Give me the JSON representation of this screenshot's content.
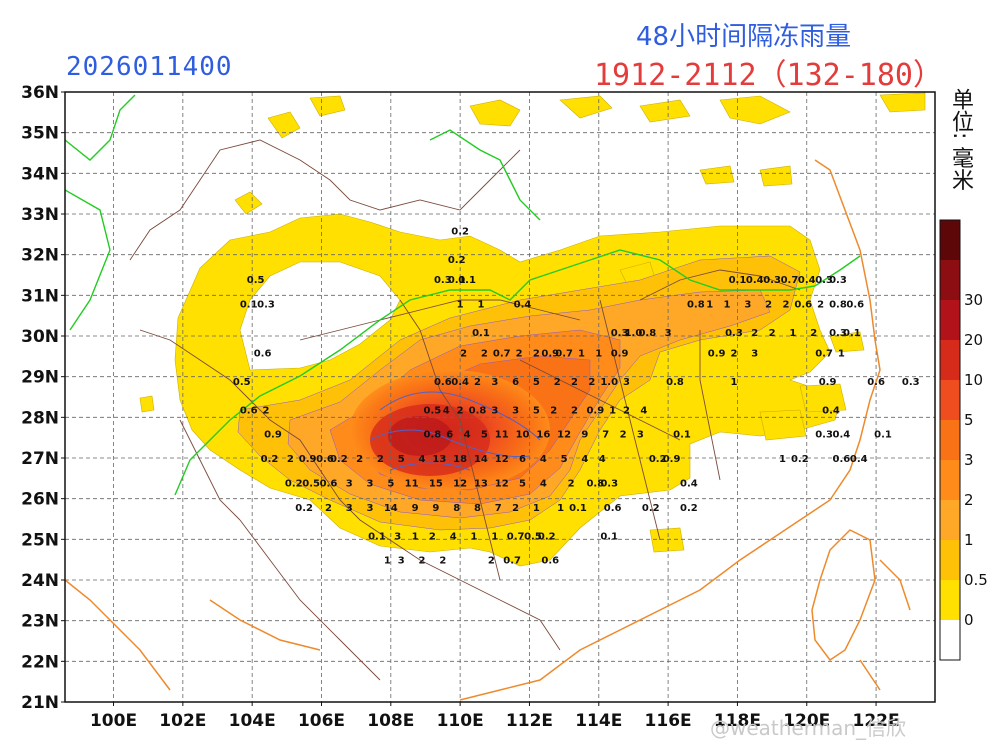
{
  "header": {
    "date_code": "2026011400",
    "title": "48小时间隔冻雨量",
    "subtitle": "1912-2112（132-180）",
    "unit": "单位: 毫米"
  },
  "watermark": "@weatherman_信欣",
  "axes": {
    "lat_labels": [
      "36N",
      "35N",
      "34N",
      "33N",
      "32N",
      "31N",
      "30N",
      "29N",
      "28N",
      "27N",
      "26N",
      "25N",
      "24N",
      "23N",
      "22N",
      "21N"
    ],
    "lon_labels": [
      "100E",
      "102E",
      "104E",
      "106E",
      "108E",
      "110E",
      "112E",
      "114E",
      "116E",
      "118E",
      "120E",
      "122E"
    ]
  },
  "legend": {
    "levels": [
      "0",
      "0.5",
      "1",
      "2",
      "3",
      "5",
      "10",
      "20",
      "30"
    ],
    "colors": [
      "#ffffff",
      "#ffe000",
      "#ffc107",
      "#ffa726",
      "#ff8c1a",
      "#f97316",
      "#ef4d1f",
      "#d62b1b",
      "#b2121a",
      "#8c0d12",
      "#5e0709"
    ]
  },
  "colors": {
    "light_precip": "#ffe000",
    "province_border": "#7a4a3a",
    "coastline": "#ee8a2c",
    "river_border": "#22cc22",
    "contour": "#5560c8",
    "title_blue": "#2f5de0",
    "subtitle_red": "#e43b3b"
  },
  "value_labels": [
    {
      "t": "0.2",
      "lon": 110.0,
      "lat": 32.5
    },
    {
      "t": "0.2",
      "lon": 109.9,
      "lat": 31.8
    },
    {
      "t": "0.5",
      "lon": 104.1,
      "lat": 31.3
    },
    {
      "t": "0.3",
      "lon": 109.5,
      "lat": 31.3
    },
    {
      "t": "0.1",
      "lon": 109.9,
      "lat": 31.3
    },
    {
      "t": "0.1",
      "lon": 110.2,
      "lat": 31.3
    },
    {
      "t": "0.1",
      "lon": 103.9,
      "lat": 30.7
    },
    {
      "t": "0.3",
      "lon": 104.4,
      "lat": 30.7
    },
    {
      "t": "1",
      "lon": 110.0,
      "lat": 30.7
    },
    {
      "t": "1",
      "lon": 110.6,
      "lat": 30.7
    },
    {
      "t": "0.4",
      "lon": 111.8,
      "lat": 30.7
    },
    {
      "t": "0.1",
      "lon": 118.0,
      "lat": 31.3
    },
    {
      "t": "0.4",
      "lon": 118.5,
      "lat": 31.3
    },
    {
      "t": "0.3",
      "lon": 119.0,
      "lat": 31.3
    },
    {
      "t": "0.7",
      "lon": 119.5,
      "lat": 31.3
    },
    {
      "t": "0.4",
      "lon": 120.0,
      "lat": 31.3
    },
    {
      "t": "0.3",
      "lon": 120.5,
      "lat": 31.3
    },
    {
      "t": "0.3",
      "lon": 120.9,
      "lat": 31.3
    },
    {
      "t": "0.8",
      "lon": 116.8,
      "lat": 30.7
    },
    {
      "t": "1",
      "lon": 117.2,
      "lat": 30.7
    },
    {
      "t": "1",
      "lon": 117.7,
      "lat": 30.7
    },
    {
      "t": "3",
      "lon": 118.3,
      "lat": 30.7
    },
    {
      "t": "2",
      "lon": 118.9,
      "lat": 30.7
    },
    {
      "t": "2",
      "lon": 119.4,
      "lat": 30.7
    },
    {
      "t": "0.6",
      "lon": 119.9,
      "lat": 30.7
    },
    {
      "t": "2",
      "lon": 120.4,
      "lat": 30.7
    },
    {
      "t": "0.8",
      "lon": 120.9,
      "lat": 30.7
    },
    {
      "t": "0.6",
      "lon": 121.4,
      "lat": 30.7
    },
    {
      "t": "0.1",
      "lon": 110.6,
      "lat": 30.0
    },
    {
      "t": "0.3",
      "lon": 114.6,
      "lat": 30.0
    },
    {
      "t": "1.0",
      "lon": 115.0,
      "lat": 30.0
    },
    {
      "t": "0.8",
      "lon": 115.4,
      "lat": 30.0
    },
    {
      "t": "3",
      "lon": 116.0,
      "lat": 30.0
    },
    {
      "t": "0.3",
      "lon": 117.9,
      "lat": 30.0
    },
    {
      "t": "2",
      "lon": 118.5,
      "lat": 30.0
    },
    {
      "t": "2",
      "lon": 119.0,
      "lat": 30.0
    },
    {
      "t": "1",
      "lon": 119.6,
      "lat": 30.0
    },
    {
      "t": "2",
      "lon": 120.2,
      "lat": 30.0
    },
    {
      "t": "0.3",
      "lon": 120.9,
      "lat": 30.0
    },
    {
      "t": "0.1",
      "lon": 121.3,
      "lat": 30.0
    },
    {
      "t": "0.6",
      "lon": 104.3,
      "lat": 29.5
    },
    {
      "t": "2",
      "lon": 110.1,
      "lat": 29.5
    },
    {
      "t": "2",
      "lon": 110.7,
      "lat": 29.5
    },
    {
      "t": "0.7",
      "lon": 111.2,
      "lat": 29.5
    },
    {
      "t": "2",
      "lon": 111.7,
      "lat": 29.5
    },
    {
      "t": "2",
      "lon": 112.2,
      "lat": 29.5
    },
    {
      "t": "0.9",
      "lon": 112.6,
      "lat": 29.5
    },
    {
      "t": "0.7",
      "lon": 113.0,
      "lat": 29.5
    },
    {
      "t": "1",
      "lon": 113.5,
      "lat": 29.5
    },
    {
      "t": "1",
      "lon": 114.0,
      "lat": 29.5
    },
    {
      "t": "0.9",
      "lon": 114.6,
      "lat": 29.5
    },
    {
      "t": "0.9",
      "lon": 117.4,
      "lat": 29.5
    },
    {
      "t": "2",
      "lon": 117.9,
      "lat": 29.5
    },
    {
      "t": "3",
      "lon": 118.5,
      "lat": 29.5
    },
    {
      "t": "0.7",
      "lon": 120.5,
      "lat": 29.5
    },
    {
      "t": "1",
      "lon": 121.0,
      "lat": 29.5
    },
    {
      "t": "0.5",
      "lon": 103.7,
      "lat": 28.8
    },
    {
      "t": "0.6",
      "lon": 109.5,
      "lat": 28.8
    },
    {
      "t": "0.4",
      "lon": 110.0,
      "lat": 28.8
    },
    {
      "t": "2",
      "lon": 110.5,
      "lat": 28.8
    },
    {
      "t": "3",
      "lon": 111.0,
      "lat": 28.8
    },
    {
      "t": "6",
      "lon": 111.6,
      "lat": 28.8
    },
    {
      "t": "5",
      "lon": 112.2,
      "lat": 28.8
    },
    {
      "t": "2",
      "lon": 112.8,
      "lat": 28.8
    },
    {
      "t": "2",
      "lon": 113.3,
      "lat": 28.8
    },
    {
      "t": "2",
      "lon": 113.8,
      "lat": 28.8
    },
    {
      "t": "1.0",
      "lon": 114.3,
      "lat": 28.8
    },
    {
      "t": "3",
      "lon": 114.8,
      "lat": 28.8
    },
    {
      "t": "0.8",
      "lon": 116.2,
      "lat": 28.8
    },
    {
      "t": "1",
      "lon": 117.9,
      "lat": 28.8
    },
    {
      "t": "0.9",
      "lon": 120.6,
      "lat": 28.8
    },
    {
      "t": "0.6",
      "lon": 122.0,
      "lat": 28.8
    },
    {
      "t": "0.3",
      "lon": 123.0,
      "lat": 28.8
    },
    {
      "t": "0.6",
      "lon": 103.9,
      "lat": 28.1
    },
    {
      "t": "2",
      "lon": 104.4,
      "lat": 28.1
    },
    {
      "t": "0.5",
      "lon": 109.2,
      "lat": 28.1
    },
    {
      "t": "4",
      "lon": 109.6,
      "lat": 28.1
    },
    {
      "t": "2",
      "lon": 110.0,
      "lat": 28.1
    },
    {
      "t": "0.8",
      "lon": 110.5,
      "lat": 28.1
    },
    {
      "t": "3",
      "lon": 111.0,
      "lat": 28.1
    },
    {
      "t": "3",
      "lon": 111.6,
      "lat": 28.1
    },
    {
      "t": "5",
      "lon": 112.2,
      "lat": 28.1
    },
    {
      "t": "2",
      "lon": 112.7,
      "lat": 28.1
    },
    {
      "t": "2",
      "lon": 113.3,
      "lat": 28.1
    },
    {
      "t": "0.9",
      "lon": 113.9,
      "lat": 28.1
    },
    {
      "t": "1",
      "lon": 114.4,
      "lat": 28.1
    },
    {
      "t": "2",
      "lon": 114.8,
      "lat": 28.1
    },
    {
      "t": "4",
      "lon": 115.3,
      "lat": 28.1
    },
    {
      "t": "0.4",
      "lon": 120.7,
      "lat": 28.1
    },
    {
      "t": "0.9",
      "lon": 104.6,
      "lat": 27.5
    },
    {
      "t": "0.8",
      "lon": 109.2,
      "lat": 27.5
    },
    {
      "t": "6",
      "lon": 109.7,
      "lat": 27.5
    },
    {
      "t": "4",
      "lon": 110.2,
      "lat": 27.5
    },
    {
      "t": "5",
      "lon": 110.7,
      "lat": 27.5
    },
    {
      "t": "11",
      "lon": 111.2,
      "lat": 27.5
    },
    {
      "t": "10",
      "lon": 111.8,
      "lat": 27.5
    },
    {
      "t": "16",
      "lon": 112.4,
      "lat": 27.5
    },
    {
      "t": "12",
      "lon": 113.0,
      "lat": 27.5
    },
    {
      "t": "9",
      "lon": 113.6,
      "lat": 27.5
    },
    {
      "t": "7",
      "lon": 114.2,
      "lat": 27.5
    },
    {
      "t": "2",
      "lon": 114.7,
      "lat": 27.5
    },
    {
      "t": "3",
      "lon": 115.2,
      "lat": 27.5
    },
    {
      "t": "0.1",
      "lon": 116.4,
      "lat": 27.5
    },
    {
      "t": "0.3",
      "lon": 120.5,
      "lat": 27.5
    },
    {
      "t": "0.4",
      "lon": 121.0,
      "lat": 27.5
    },
    {
      "t": "0.1",
      "lon": 122.2,
      "lat": 27.5
    },
    {
      "t": "0.2",
      "lon": 104.5,
      "lat": 26.9
    },
    {
      "t": "2",
      "lon": 105.1,
      "lat": 26.9
    },
    {
      "t": "0.9",
      "lon": 105.6,
      "lat": 26.9
    },
    {
      "t": "0.6",
      "lon": 106.1,
      "lat": 26.9
    },
    {
      "t": "0.2",
      "lon": 106.5,
      "lat": 26.9
    },
    {
      "t": "2",
      "lon": 107.1,
      "lat": 26.9
    },
    {
      "t": "2",
      "lon": 107.7,
      "lat": 26.9
    },
    {
      "t": "5",
      "lon": 108.3,
      "lat": 26.9
    },
    {
      "t": "4",
      "lon": 108.9,
      "lat": 26.9
    },
    {
      "t": "13",
      "lon": 109.4,
      "lat": 26.9
    },
    {
      "t": "18",
      "lon": 110.0,
      "lat": 26.9
    },
    {
      "t": "14",
      "lon": 110.6,
      "lat": 26.9
    },
    {
      "t": "12",
      "lon": 111.2,
      "lat": 26.9
    },
    {
      "t": "6",
      "lon": 111.8,
      "lat": 26.9
    },
    {
      "t": "4",
      "lon": 112.4,
      "lat": 26.9
    },
    {
      "t": "5",
      "lon": 113.0,
      "lat": 26.9
    },
    {
      "t": "4",
      "lon": 113.6,
      "lat": 26.9
    },
    {
      "t": "4",
      "lon": 114.1,
      "lat": 26.9
    },
    {
      "t": "0.2",
      "lon": 115.7,
      "lat": 26.9
    },
    {
      "t": "0.9",
      "lon": 116.1,
      "lat": 26.9
    },
    {
      "t": "1",
      "lon": 119.3,
      "lat": 26.9
    },
    {
      "t": "0.2",
      "lon": 119.8,
      "lat": 26.9
    },
    {
      "t": "0.6",
      "lon": 121.0,
      "lat": 26.9
    },
    {
      "t": "0.4",
      "lon": 121.5,
      "lat": 26.9
    },
    {
      "t": "0.2",
      "lon": 105.2,
      "lat": 26.3
    },
    {
      "t": "0.5",
      "lon": 105.7,
      "lat": 26.3
    },
    {
      "t": "0.6",
      "lon": 106.2,
      "lat": 26.3
    },
    {
      "t": "3",
      "lon": 106.8,
      "lat": 26.3
    },
    {
      "t": "3",
      "lon": 107.4,
      "lat": 26.3
    },
    {
      "t": "5",
      "lon": 108.0,
      "lat": 26.3
    },
    {
      "t": "11",
      "lon": 108.6,
      "lat": 26.3
    },
    {
      "t": "15",
      "lon": 109.3,
      "lat": 26.3
    },
    {
      "t": "12",
      "lon": 110.0,
      "lat": 26.3
    },
    {
      "t": "13",
      "lon": 110.6,
      "lat": 26.3
    },
    {
      "t": "12",
      "lon": 111.2,
      "lat": 26.3
    },
    {
      "t": "5",
      "lon": 111.8,
      "lat": 26.3
    },
    {
      "t": "4",
      "lon": 112.4,
      "lat": 26.3
    },
    {
      "t": "2",
      "lon": 113.2,
      "lat": 26.3
    },
    {
      "t": "0.8",
      "lon": 113.9,
      "lat": 26.3
    },
    {
      "t": "0.3",
      "lon": 114.3,
      "lat": 26.3
    },
    {
      "t": "0.4",
      "lon": 116.6,
      "lat": 26.3
    },
    {
      "t": "0.2",
      "lon": 105.5,
      "lat": 25.7
    },
    {
      "t": "2",
      "lon": 106.2,
      "lat": 25.7
    },
    {
      "t": "3",
      "lon": 106.8,
      "lat": 25.7
    },
    {
      "t": "3",
      "lon": 107.4,
      "lat": 25.7
    },
    {
      "t": "14",
      "lon": 108.0,
      "lat": 25.7
    },
    {
      "t": "9",
      "lon": 108.7,
      "lat": 25.7
    },
    {
      "t": "9",
      "lon": 109.3,
      "lat": 25.7
    },
    {
      "t": "8",
      "lon": 109.9,
      "lat": 25.7
    },
    {
      "t": "8",
      "lon": 110.5,
      "lat": 25.7
    },
    {
      "t": "7",
      "lon": 111.1,
      "lat": 25.7
    },
    {
      "t": "2",
      "lon": 111.6,
      "lat": 25.7
    },
    {
      "t": "1",
      "lon": 112.2,
      "lat": 25.7
    },
    {
      "t": "1",
      "lon": 112.9,
      "lat": 25.7
    },
    {
      "t": "0.1",
      "lon": 113.4,
      "lat": 25.7
    },
    {
      "t": "0.6",
      "lon": 114.4,
      "lat": 25.7
    },
    {
      "t": "0.2",
      "lon": 115.5,
      "lat": 25.7
    },
    {
      "t": "0.2",
      "lon": 116.6,
      "lat": 25.7
    },
    {
      "t": "0.1",
      "lon": 107.6,
      "lat": 25.0
    },
    {
      "t": "3",
      "lon": 108.2,
      "lat": 25.0
    },
    {
      "t": "1",
      "lon": 108.7,
      "lat": 25.0
    },
    {
      "t": "2",
      "lon": 109.2,
      "lat": 25.0
    },
    {
      "t": "4",
      "lon": 109.8,
      "lat": 25.0
    },
    {
      "t": "1",
      "lon": 110.4,
      "lat": 25.0
    },
    {
      "t": "1",
      "lon": 111.0,
      "lat": 25.0
    },
    {
      "t": "0.7",
      "lon": 111.6,
      "lat": 25.0
    },
    {
      "t": "0.5",
      "lon": 112.1,
      "lat": 25.0
    },
    {
      "t": "0.2",
      "lon": 112.5,
      "lat": 25.0
    },
    {
      "t": "0.1",
      "lon": 114.3,
      "lat": 25.0
    },
    {
      "t": "1",
      "lon": 107.9,
      "lat": 24.4
    },
    {
      "t": "3",
      "lon": 108.3,
      "lat": 24.4
    },
    {
      "t": "2",
      "lon": 108.9,
      "lat": 24.4
    },
    {
      "t": "2",
      "lon": 109.5,
      "lat": 24.4
    },
    {
      "t": "2",
      "lon": 110.9,
      "lat": 24.4
    },
    {
      "t": "0.7",
      "lon": 111.5,
      "lat": 24.4
    },
    {
      "t": "0.6",
      "lon": 112.6,
      "lat": 24.4
    }
  ]
}
